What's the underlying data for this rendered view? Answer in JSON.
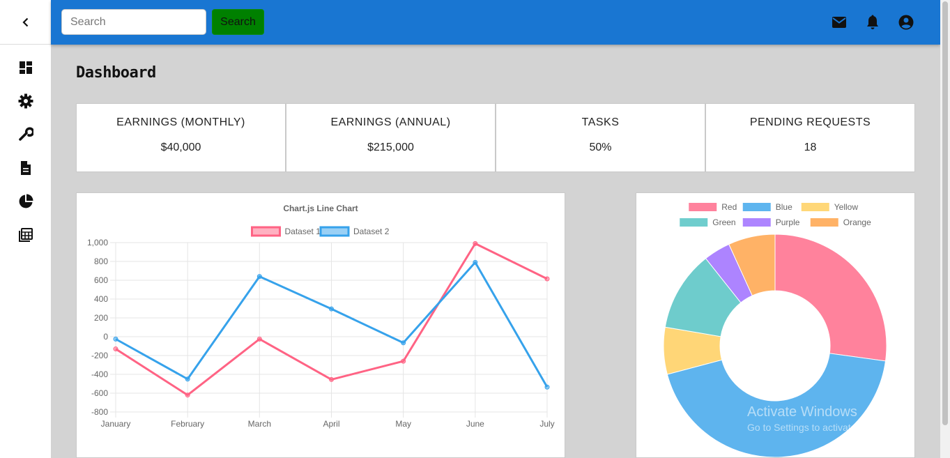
{
  "sidebar": {
    "collapse_icon": "chevron-left-icon",
    "items": [
      {
        "icon": "dashboard-icon"
      },
      {
        "icon": "gear-icon"
      },
      {
        "icon": "wrench-icon"
      },
      {
        "icon": "document-icon"
      },
      {
        "icon": "pie-chart-icon"
      },
      {
        "icon": "library-icon"
      }
    ]
  },
  "header": {
    "search": {
      "placeholder": "Search",
      "value": ""
    },
    "search_button_label": "Search",
    "icons": [
      "mail-icon",
      "bell-icon",
      "account-circle-icon"
    ],
    "accent_color": "#1976d2",
    "search_button_color": "#008000"
  },
  "main": {
    "page_title": "Dashboard",
    "cards": [
      {
        "title": "EARNINGS (MONTHLY)",
        "value": "$40,000"
      },
      {
        "title": "EARNINGS (ANNUAL)",
        "value": "$215,000"
      },
      {
        "title": "TASKS",
        "value": "50%"
      },
      {
        "title": "PENDING REQUESTS",
        "value": "18"
      }
    ]
  },
  "chart_data": [
    {
      "type": "line",
      "title": "Chart.js Line Chart",
      "categories": [
        "January",
        "February",
        "March",
        "April",
        "May",
        "June",
        "July"
      ],
      "ylim": [
        -800,
        1000
      ],
      "yticks": [
        "1,000",
        "800",
        "600",
        "400",
        "200",
        "0",
        "-200",
        "-400",
        "-600",
        "-800"
      ],
      "grid": true,
      "legend_position": "top",
      "series": [
        {
          "name": "Dataset 1",
          "color": "#ff6384",
          "values": [
            -130,
            -620,
            -25,
            -455,
            -260,
            990,
            615
          ]
        },
        {
          "name": "Dataset 2",
          "color": "#36a2eb",
          "values": [
            -25,
            -450,
            640,
            295,
            -65,
            790,
            -535
          ]
        }
      ]
    },
    {
      "type": "pie",
      "variant": "doughnut",
      "legend_position": "top",
      "slices": [
        {
          "label": "Red",
          "value": 28,
          "color": "#ff6384"
        },
        {
          "label": "Blue",
          "value": 45,
          "color": "#36a2eb"
        },
        {
          "label": "Yellow",
          "value": 7,
          "color": "#ffcd56"
        },
        {
          "label": "Green",
          "value": 12,
          "color": "#4bc0c0"
        },
        {
          "label": "Purple",
          "value": 4,
          "color": "#9966ff"
        },
        {
          "label": "Orange",
          "value": 7,
          "color": "#ff9f40"
        }
      ]
    }
  ],
  "watermark": {
    "line1": "Activate Windows",
    "line2": "Go to Settings to activate Windows."
  }
}
